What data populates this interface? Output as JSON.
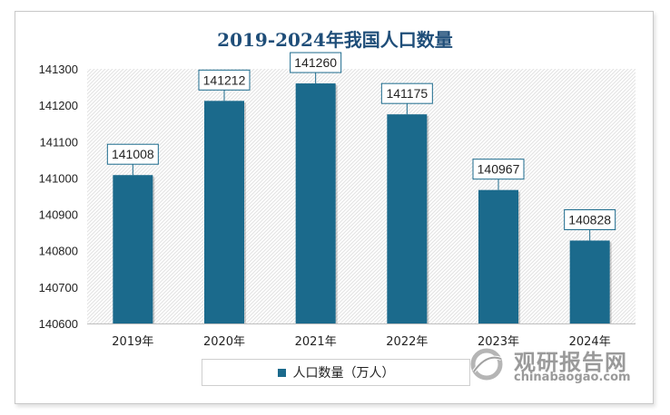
{
  "chart_data": {
    "type": "bar",
    "title": "2019-2024年我国人口数量",
    "categories": [
      "2019年",
      "2020年",
      "2021年",
      "2022年",
      "2023年",
      "2024年"
    ],
    "series": [
      {
        "name": "人口数量（万人）",
        "values": [
          141008,
          141212,
          141260,
          141175,
          140967,
          140828
        ]
      }
    ],
    "ylim": [
      140600,
      141300
    ],
    "yticks": [
      140600,
      140700,
      140800,
      140900,
      141000,
      141100,
      141200,
      141300
    ],
    "grid": false,
    "legend": "bottom",
    "colors": {
      "bar": "#1b6a8c",
      "title": "#1f4e79"
    }
  },
  "watermark": {
    "name_cn": "观研报告网",
    "url": "chinabaogao.com",
    "icon": "globe-logo-icon"
  }
}
